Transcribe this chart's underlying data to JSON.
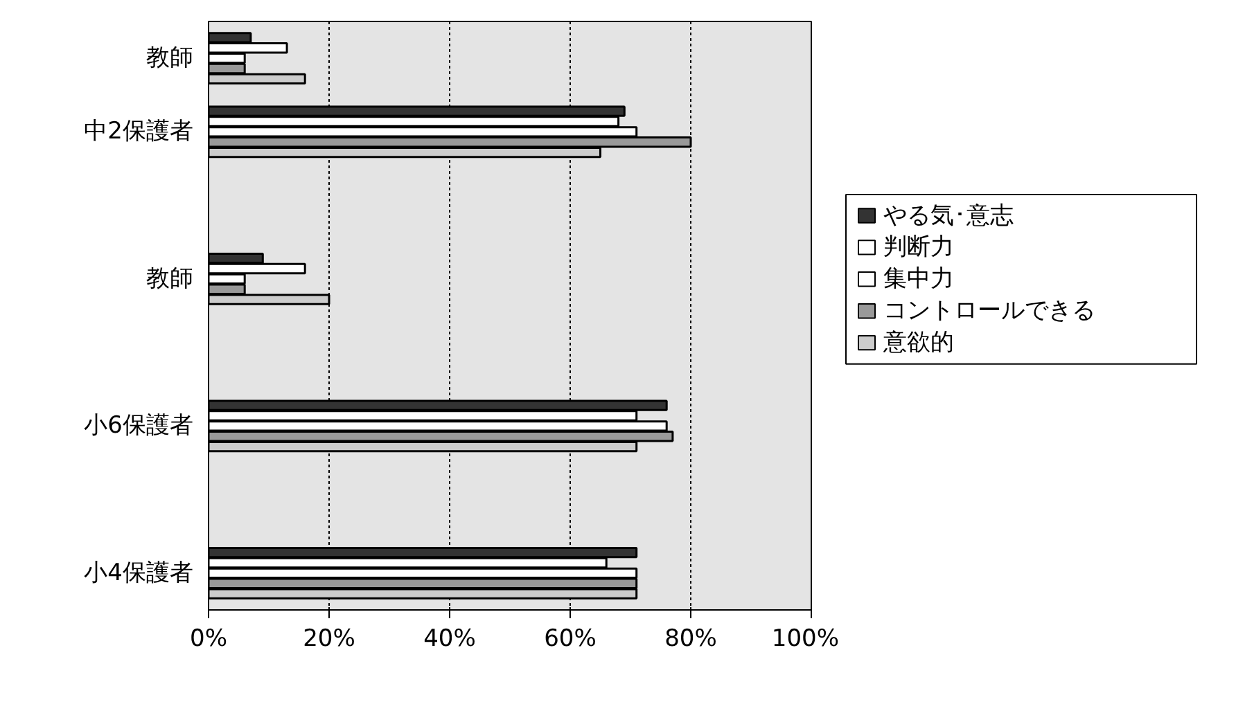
{
  "chart_data": {
    "type": "bar",
    "orientation": "horizontal",
    "categories": [
      "教師",
      "中2保護者",
      null,
      "教師",
      null,
      "小6保護者",
      null,
      "小4保護者"
    ],
    "series": [
      {
        "name": "やる気･意志",
        "color": "#333333",
        "values": [
          7,
          69,
          null,
          9,
          null,
          76,
          null,
          71
        ]
      },
      {
        "name": "判断力",
        "color": "#ffffff",
        "values": [
          13,
          68,
          null,
          16,
          null,
          71,
          null,
          66
        ]
      },
      {
        "name": "集中力",
        "color": "#ffffff",
        "values": [
          6,
          71,
          null,
          6,
          null,
          76,
          null,
          71
        ]
      },
      {
        "name": "コントロールできる",
        "color": "#999999",
        "values": [
          6,
          80,
          null,
          6,
          null,
          77,
          null,
          71
        ]
      },
      {
        "name": "意欲的",
        "color": "#cccccc",
        "values": [
          16,
          65,
          null,
          20,
          null,
          71,
          null,
          71
        ]
      }
    ],
    "xlim": [
      0,
      100
    ],
    "xticks": [
      {
        "value": 0,
        "label": "0%"
      },
      {
        "value": 20,
        "label": "20%"
      },
      {
        "value": 40,
        "label": "40%"
      },
      {
        "value": 60,
        "label": "60%"
      },
      {
        "value": 80,
        "label": "80%"
      },
      {
        "value": 100,
        "label": "100%"
      }
    ],
    "grid": "x",
    "legend": "right"
  }
}
